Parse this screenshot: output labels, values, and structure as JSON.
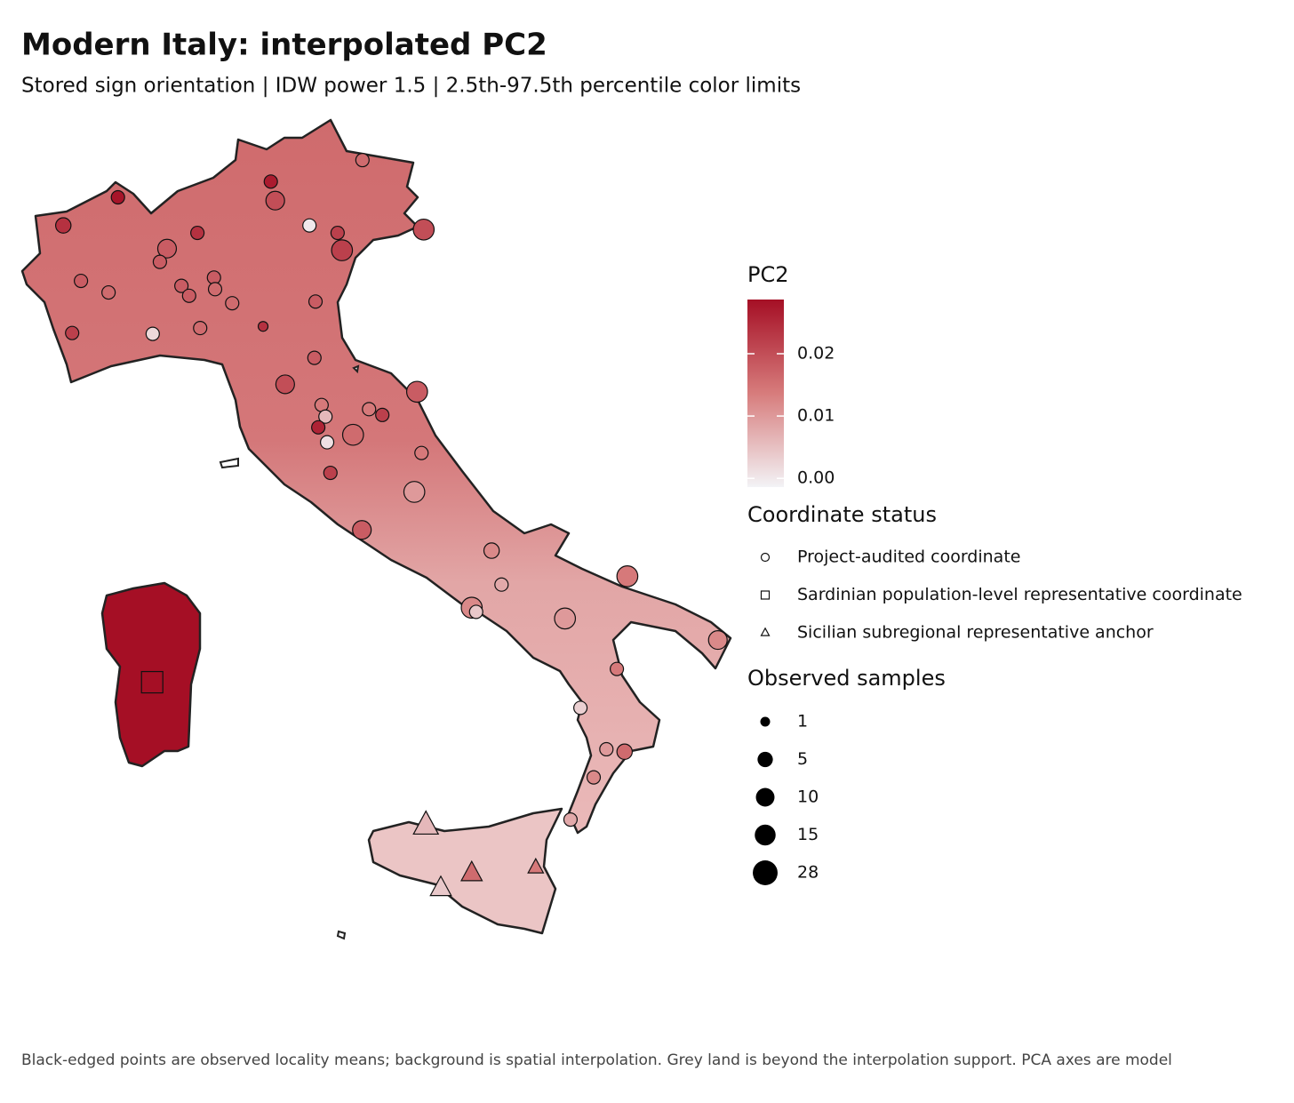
{
  "map": {
    "title": "Modern Italy: interpolated PC2",
    "subtitle": "Stored sign orientation | IDW power 1.5 | 2.5th-97.5th percentile color limits",
    "caption": "Black-edged points are observed locality means; background is spatial interpolation. Grey land is beyond the interpolation support. PCA axes are model",
    "color_legend": {
      "title": "PC2",
      "lim": [
        -0.0014,
        0.0287
      ],
      "colors": [
        "#f3f3f6",
        "#d77c7c",
        "#a50f25"
      ],
      "ticks": [
        {
          "value": 0,
          "label": "0.00"
        },
        {
          "value": 0.01,
          "label": "0.01"
        },
        {
          "value": 0.02,
          "label": "0.02"
        }
      ]
    },
    "size_legend": {
      "title": "Observed samples",
      "values": [
        1,
        5,
        10,
        15,
        28
      ]
    },
    "coordinate_status": {
      "title": "Coordinate status",
      "groups": [
        {
          "label": "Project-audited coordinate",
          "points": [
            {
              "lon": 6.3,
              "lat": 45.36,
              "pc2": 0.024,
              "n": 5
            },
            {
              "lon": 7.29,
              "lat": 45.7,
              "pc2": 0.028,
              "n": 3
            },
            {
              "lon": 6.62,
              "lat": 44.69,
              "pc2": 0.018,
              "n": 3
            },
            {
              "lon": 7.12,
              "lat": 44.55,
              "pc2": 0.016,
              "n": 3
            },
            {
              "lon": 6.46,
              "lat": 44.06,
              "pc2": 0.022,
              "n": 3
            },
            {
              "lon": 7.92,
              "lat": 44.05,
              "pc2": 0.002,
              "n": 3
            },
            {
              "lon": 8.18,
              "lat": 45.08,
              "pc2": 0.018,
              "n": 10
            },
            {
              "lon": 8.05,
              "lat": 44.92,
              "pc2": 0.018,
              "n": 3
            },
            {
              "lon": 8.73,
              "lat": 45.27,
              "pc2": 0.024,
              "n": 3
            },
            {
              "lon": 8.44,
              "lat": 44.63,
              "pc2": 0.018,
              "n": 3
            },
            {
              "lon": 8.58,
              "lat": 44.51,
              "pc2": 0.018,
              "n": 3
            },
            {
              "lon": 9.03,
              "lat": 44.73,
              "pc2": 0.018,
              "n": 3
            },
            {
              "lon": 9.05,
              "lat": 44.59,
              "pc2": 0.016,
              "n": 3
            },
            {
              "lon": 9.36,
              "lat": 44.42,
              "pc2": 0.016,
              "n": 3
            },
            {
              "lon": 8.78,
              "lat": 44.12,
              "pc2": 0.016,
              "n": 3
            },
            {
              "lon": 9.92,
              "lat": 44.14,
              "pc2": 0.024,
              "n": 1
            },
            {
              "lon": 10.06,
              "lat": 45.89,
              "pc2": 0.027,
              "n": 3
            },
            {
              "lon": 10.14,
              "lat": 45.66,
              "pc2": 0.02,
              "n": 10
            },
            {
              "lon": 10.76,
              "lat": 45.36,
              "pc2": 0.0,
              "n": 3
            },
            {
              "lon": 11.27,
              "lat": 45.27,
              "pc2": 0.022,
              "n": 3
            },
            {
              "lon": 11.35,
              "lat": 45.06,
              "pc2": 0.022,
              "n": 15
            },
            {
              "lon": 11.72,
              "lat": 46.15,
              "pc2": 0.016,
              "n": 3
            },
            {
              "lon": 12.83,
              "lat": 45.31,
              "pc2": 0.02,
              "n": 15
            },
            {
              "lon": 10.87,
              "lat": 44.44,
              "pc2": 0.018,
              "n": 3
            },
            {
              "lon": 10.85,
              "lat": 43.76,
              "pc2": 0.018,
              "n": 3
            },
            {
              "lon": 10.32,
              "lat": 43.44,
              "pc2": 0.02,
              "n": 10
            },
            {
              "lon": 12.71,
              "lat": 43.35,
              "pc2": 0.018,
              "n": 15
            },
            {
              "lon": 10.98,
              "lat": 43.19,
              "pc2": 0.014,
              "n": 3
            },
            {
              "lon": 11.05,
              "lat": 43.05,
              "pc2": 0.006,
              "n": 3
            },
            {
              "lon": 10.92,
              "lat": 42.92,
              "pc2": 0.026,
              "n": 3
            },
            {
              "lon": 11.08,
              "lat": 42.74,
              "pc2": 0.001,
              "n": 3
            },
            {
              "lon": 11.55,
              "lat": 42.83,
              "pc2": 0.016,
              "n": 15
            },
            {
              "lon": 11.84,
              "lat": 43.14,
              "pc2": 0.014,
              "n": 3
            },
            {
              "lon": 12.08,
              "lat": 43.07,
              "pc2": 0.022,
              "n": 3
            },
            {
              "lon": 11.14,
              "lat": 42.37,
              "pc2": 0.022,
              "n": 3
            },
            {
              "lon": 12.79,
              "lat": 42.61,
              "pc2": 0.014,
              "n": 3
            },
            {
              "lon": 12.66,
              "lat": 42.14,
              "pc2": 0.01,
              "n": 15
            },
            {
              "lon": 11.71,
              "lat": 41.68,
              "pc2": 0.018,
              "n": 10
            },
            {
              "lon": 14.06,
              "lat": 41.43,
              "pc2": 0.012,
              "n": 5
            },
            {
              "lon": 14.24,
              "lat": 41.02,
              "pc2": 0.008,
              "n": 3
            },
            {
              "lon": 13.7,
              "lat": 40.74,
              "pc2": 0.012,
              "n": 15
            },
            {
              "lon": 13.78,
              "lat": 40.69,
              "pc2": 0.004,
              "n": 3
            },
            {
              "lon": 16.52,
              "lat": 41.12,
              "pc2": 0.014,
              "n": 15
            },
            {
              "lon": 15.39,
              "lat": 40.61,
              "pc2": 0.01,
              "n": 15
            },
            {
              "lon": 18.16,
              "lat": 40.35,
              "pc2": 0.012,
              "n": 10
            },
            {
              "lon": 16.33,
              "lat": 40.0,
              "pc2": 0.014,
              "n": 3
            },
            {
              "lon": 15.67,
              "lat": 39.53,
              "pc2": 0.003,
              "n": 3
            },
            {
              "lon": 16.14,
              "lat": 39.03,
              "pc2": 0.01,
              "n": 3
            },
            {
              "lon": 16.47,
              "lat": 39.0,
              "pc2": 0.016,
              "n": 5
            },
            {
              "lon": 15.91,
              "lat": 38.69,
              "pc2": 0.012,
              "n": 3
            },
            {
              "lon": 15.49,
              "lat": 38.18,
              "pc2": 0.008,
              "n": 3
            }
          ]
        },
        {
          "label": "Sardinian population-level representative coordinate",
          "points": [
            {
              "lon": 7.91,
              "lat": 39.84,
              "pc2": 0.0287,
              "n": 28
            }
          ]
        },
        {
          "label": "Sicilian subregional representative anchor",
          "points": [
            {
              "lon": 12.87,
              "lat": 38.11,
              "pc2": 0.006,
              "n": 28
            },
            {
              "lon": 13.7,
              "lat": 37.53,
              "pc2": 0.016,
              "n": 15
            },
            {
              "lon": 14.86,
              "lat": 37.6,
              "pc2": 0.014,
              "n": 5
            },
            {
              "lon": 13.14,
              "lat": 37.35,
              "pc2": 0.004,
              "n": 15
            }
          ]
        }
      ]
    }
  }
}
